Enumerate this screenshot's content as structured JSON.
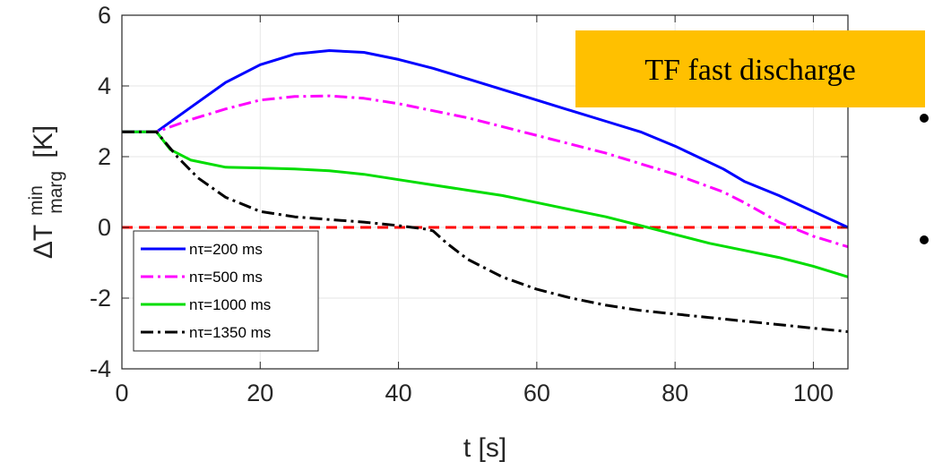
{
  "chart_data": {
    "type": "line",
    "title": "",
    "xlabel": "t [s]",
    "ylabel": {
      "base": "ΔT",
      "sup": "min",
      "sub": "marg",
      "unit": "[K]"
    },
    "xlim": [
      0,
      105
    ],
    "ylim": [
      -4,
      6
    ],
    "xticks": [
      0,
      20,
      40,
      60,
      80,
      100
    ],
    "yticks": [
      -4,
      -2,
      0,
      2,
      4,
      6
    ],
    "grid": true,
    "legend_position": "bottom-left",
    "reference_line": {
      "y": 0,
      "color": "#ff0000",
      "style": "dashed"
    },
    "series": [
      {
        "name": "nτ=200 ms",
        "color": "#0000ff",
        "style": "solid",
        "x": [
          -1,
          5,
          10,
          15,
          20,
          25,
          30,
          35,
          40,
          45,
          50,
          55,
          60,
          65,
          70,
          75,
          80,
          87,
          90,
          95,
          100,
          105
        ],
        "y": [
          2.7,
          2.7,
          3.4,
          4.1,
          4.6,
          4.9,
          5.0,
          4.95,
          4.75,
          4.5,
          4.2,
          3.9,
          3.6,
          3.3,
          3.0,
          2.7,
          2.3,
          1.65,
          1.3,
          0.9,
          0.45,
          0.0
        ]
      },
      {
        "name": "nτ=500 ms",
        "color": "#ff00ff",
        "style": "dashdot",
        "x": [
          -1,
          5,
          10,
          15,
          20,
          25,
          30,
          35,
          40,
          45,
          50,
          55,
          60,
          65,
          70,
          75,
          80,
          87,
          90,
          95,
          100,
          105
        ],
        "y": [
          2.7,
          2.7,
          3.05,
          3.35,
          3.6,
          3.7,
          3.72,
          3.65,
          3.5,
          3.3,
          3.1,
          2.85,
          2.6,
          2.35,
          2.1,
          1.8,
          1.5,
          1.0,
          0.7,
          0.15,
          -0.25,
          -0.55
        ]
      },
      {
        "name": "nτ=1000 ms",
        "color": "#00dd00",
        "style": "solid",
        "x": [
          -1,
          5,
          7,
          10,
          15,
          20,
          25,
          30,
          35,
          40,
          45,
          50,
          55,
          60,
          65,
          70,
          75,
          80,
          85,
          90,
          95,
          100,
          105
        ],
        "y": [
          2.7,
          2.7,
          2.2,
          1.9,
          1.7,
          1.68,
          1.65,
          1.6,
          1.5,
          1.35,
          1.2,
          1.05,
          0.9,
          0.7,
          0.5,
          0.3,
          0.05,
          -0.2,
          -0.45,
          -0.65,
          -0.85,
          -1.1,
          -1.4
        ]
      },
      {
        "name": "nτ=1350 ms",
        "color": "#000000",
        "style": "dashdot",
        "x": [
          -1,
          5,
          8,
          11,
          15,
          20,
          25,
          30,
          35,
          40,
          44,
          45,
          47,
          50,
          55,
          60,
          65,
          70,
          75,
          80,
          85,
          90,
          95,
          100,
          105
        ],
        "y": [
          2.7,
          2.7,
          2.0,
          1.4,
          0.85,
          0.45,
          0.3,
          0.22,
          0.15,
          0.05,
          -0.05,
          -0.1,
          -0.45,
          -0.9,
          -1.4,
          -1.75,
          -2.0,
          -2.2,
          -2.35,
          -2.45,
          -2.55,
          -2.65,
          -2.75,
          -2.85,
          -2.95
        ]
      }
    ]
  },
  "banner": {
    "text": "TF fast discharge",
    "background": "#ffc000"
  }
}
